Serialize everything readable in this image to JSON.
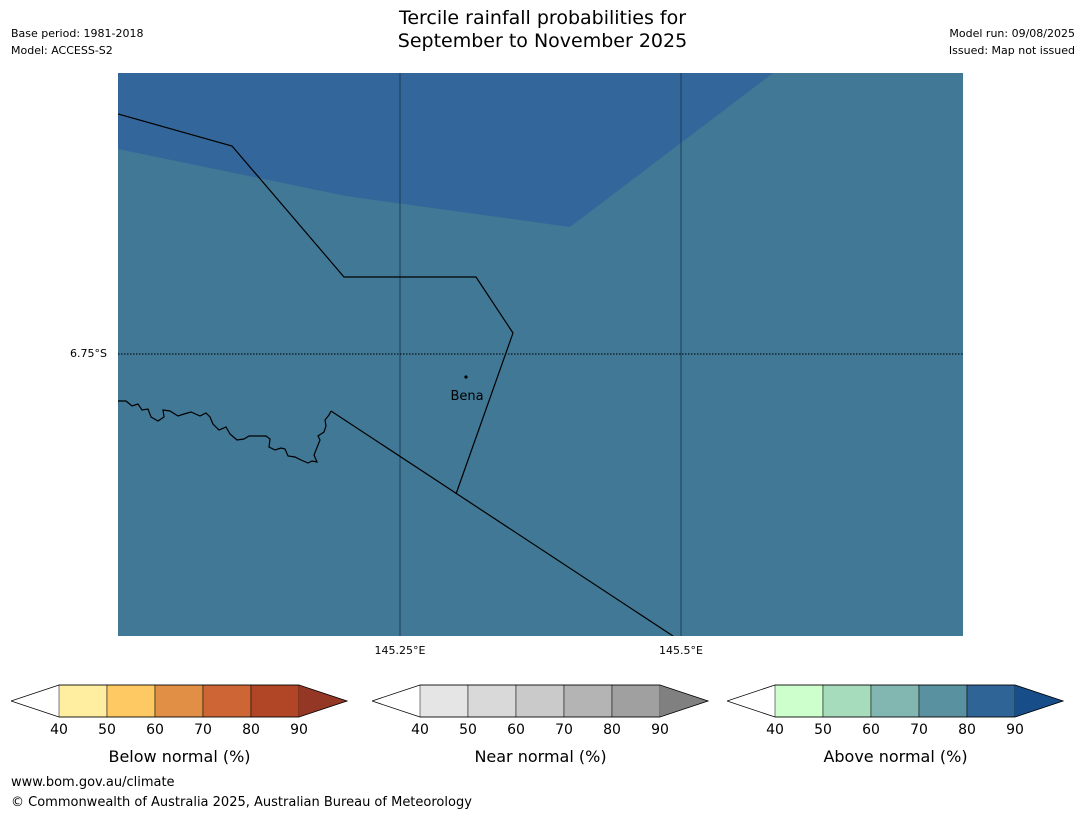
{
  "header": {
    "base_period": "Base period: 1981-2018",
    "model": "Model: ACCESS-S2",
    "title_line1": "Tercile rainfall probabilities for",
    "title_line2": "September to November 2025",
    "model_run": "Model run: 09/08/2025",
    "issued": "Issued: Map not issued"
  },
  "map": {
    "lat_label": "6.75°S",
    "lon_labels": [
      "145.25°E",
      "145.5°E"
    ],
    "place": {
      "name": "Bena"
    },
    "fill_colors": {
      "above_80_90": "#33669a",
      "above_70_80": "#407895"
    }
  },
  "legends": [
    {
      "label": "Below normal (%)",
      "ticks": [
        "40",
        "50",
        "60",
        "70",
        "80",
        "90"
      ],
      "colors": [
        "#ffeda0",
        "#fec962",
        "#e08f44",
        "#ce6534",
        "#b04626"
      ],
      "extend_color": "#953725"
    },
    {
      "label": "Near normal (%)",
      "ticks": [
        "40",
        "50",
        "60",
        "70",
        "80",
        "90"
      ],
      "colors": [
        "#e5e5e5",
        "#d9d9d9",
        "#cacaca",
        "#b4b4b4",
        "#a0a0a0"
      ],
      "extend_color": "#808080"
    },
    {
      "label": "Above normal (%)",
      "ticks": [
        "40",
        "50",
        "60",
        "70",
        "80",
        "90"
      ],
      "colors": [
        "#ccffcc",
        "#a6dbbc",
        "#82b6b1",
        "#5a91a0",
        "#2f6496"
      ],
      "extend_color": "#174d88"
    }
  ],
  "footer": {
    "url": "www.bom.gov.au/climate",
    "copyright": "© Commonwealth of Australia 2025, Australian Bureau of Meteorology"
  }
}
